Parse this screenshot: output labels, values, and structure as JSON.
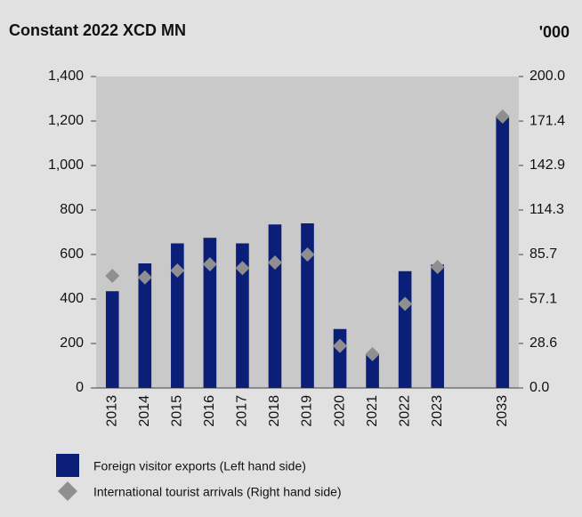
{
  "chart_data": {
    "type": "bar_marker",
    "title": "Constant 2022 XCD MN",
    "y2_title": "'000",
    "categories": [
      "2013",
      "2014",
      "2015",
      "2016",
      "2017",
      "2018",
      "2019",
      "2020",
      "2021",
      "2022",
      "2023",
      null,
      "2033"
    ],
    "series": [
      {
        "name": "Foreign visitor exports (Left hand side)",
        "color": "#0b1f78",
        "values": [
          435,
          560,
          650,
          675,
          650,
          735,
          740,
          265,
          150,
          525,
          555,
          null,
          1220
        ]
      },
      {
        "name": "International tourist arrivals (Right hand side)",
        "color": "#8f8f8f",
        "axis": "y2",
        "values": [
          72,
          71,
          75.4,
          79.4,
          77,
          80.6,
          85.7,
          27,
          21.7,
          54,
          77.7,
          null,
          174.3
        ]
      }
    ],
    "ylim": [
      0,
      1400
    ],
    "yticks": [
      0,
      200,
      400,
      600,
      800,
      {
        "value": 1000,
        "label": "1,000"
      },
      {
        "value": 1200,
        "label": "1,200"
      },
      {
        "value": 1400,
        "label": "1,400"
      }
    ],
    "y2lim": [
      0,
      200
    ],
    "y2ticks": [
      {
        "value": 0,
        "label": "0.0"
      },
      28.6,
      57.1,
      85.7,
      114.3,
      142.9,
      171.4,
      {
        "value": 200,
        "label": "200.0"
      }
    ],
    "grid": false
  }
}
